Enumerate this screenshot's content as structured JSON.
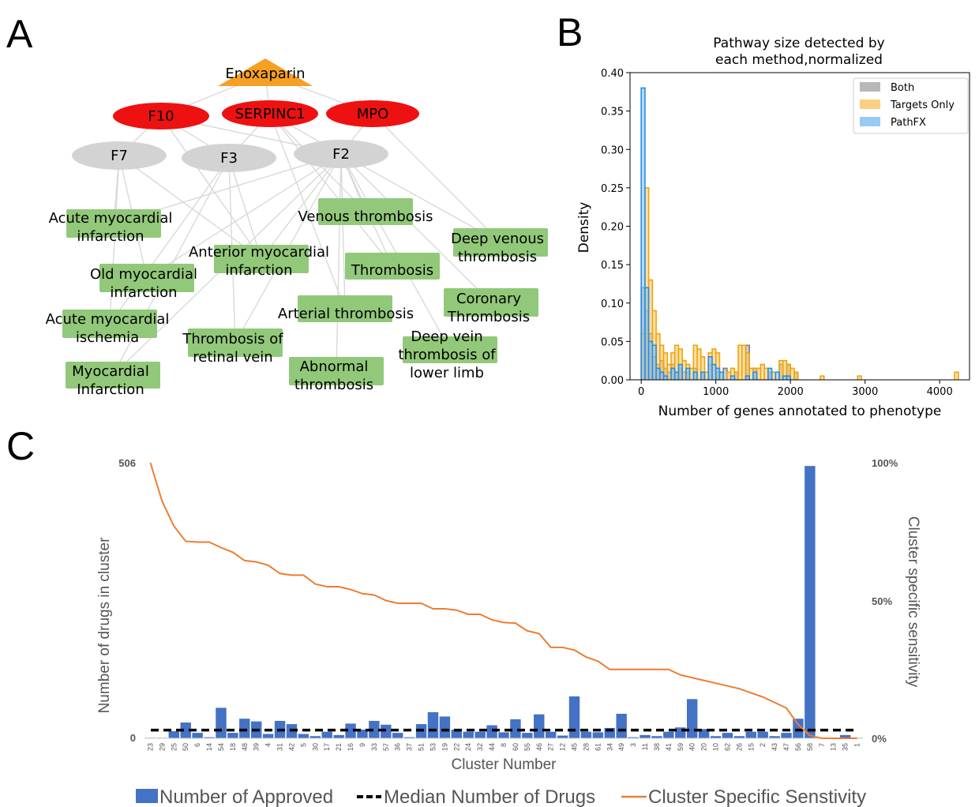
{
  "panels": {
    "a": "A",
    "b": "B",
    "c": "C"
  },
  "network": {
    "edge_color": "#d9d9d9",
    "drug": {
      "label": "Enoxaparin",
      "color": "#f6a023"
    },
    "targets": [
      {
        "label": "F10",
        "color": "#ee1111"
      },
      {
        "label": "SERPINC1",
        "color": "#ee1111"
      },
      {
        "label": "MPO",
        "color": "#ee1111"
      }
    ],
    "intermediates": [
      {
        "label": "F7",
        "color": "#d3d3d3"
      },
      {
        "label": "F3",
        "color": "#d3d3d3"
      },
      {
        "label": "F2",
        "color": "#d3d3d3"
      }
    ],
    "phenotype_color": "#92c87a",
    "phenotypes": [
      {
        "lines": [
          "Acute myocardial",
          "infarction"
        ]
      },
      {
        "lines": [
          "Venous thrombosis"
        ]
      },
      {
        "lines": [
          "Deep venous",
          "thrombosis"
        ]
      },
      {
        "lines": [
          "Anterior myocardial",
          "infarction"
        ]
      },
      {
        "lines": [
          "Old myocardial",
          "infarction"
        ]
      },
      {
        "lines": [
          "Thrombosis"
        ]
      },
      {
        "lines": [
          "Coronary",
          "Thrombosis"
        ]
      },
      {
        "lines": [
          "Arterial thrombosis"
        ]
      },
      {
        "lines": [
          "Acute myocardial",
          "ischemia"
        ]
      },
      {
        "lines": [
          "Thrombosis of",
          "retinal vein"
        ]
      },
      {
        "lines": [
          "Deep vein",
          "thrombosis of",
          "lower limb"
        ]
      },
      {
        "lines": [
          "Abnormal",
          "thrombosis"
        ]
      },
      {
        "lines": [
          "Myocardial",
          "Infarction"
        ]
      }
    ]
  },
  "chart_data": [
    {
      "type": "histogram",
      "title_lines": [
        "Pathway size detected by",
        "each method,normalized"
      ],
      "xlabel": "Number of genes annotated to phenotype",
      "ylabel": "Density",
      "xlim": [
        -150,
        4400
      ],
      "ylim": [
        0,
        0.4
      ],
      "xticks": [
        0,
        1000,
        2000,
        3000,
        4000
      ],
      "yticks": [
        0.0,
        0.05,
        0.1,
        0.15,
        0.2,
        0.25,
        0.3,
        0.35,
        0.4
      ],
      "ytick_labels": [
        "0.00",
        "0.05",
        "0.10",
        "0.15",
        "0.20",
        "0.25",
        "0.30",
        "0.35",
        "0.40"
      ],
      "bin_width": 50,
      "legend_position": "upper right",
      "series": [
        {
          "name": "Both",
          "color": "#a6a6a6",
          "bins": [
            [
              0,
              0.12
            ],
            [
              50,
              0.09
            ],
            [
              100,
              0.06
            ],
            [
              150,
              0.03
            ],
            [
              200,
              0.02
            ],
            [
              250,
              0.025
            ],
            [
              300,
              0.015
            ],
            [
              350,
              0.01
            ],
            [
              400,
              0.02
            ],
            [
              450,
              0.01
            ],
            [
              500,
              0.015
            ],
            [
              550,
              0.01
            ],
            [
              600,
              0.01
            ],
            [
              700,
              0.015
            ],
            [
              800,
              0.01
            ],
            [
              900,
              0.02
            ],
            [
              1000,
              0.01
            ],
            [
              1100,
              0.015
            ],
            [
              1250,
              0.01
            ],
            [
              1400,
              0.045
            ],
            [
              1500,
              0.015
            ],
            [
              1700,
              0.01
            ],
            [
              1850,
              0.02
            ],
            [
              1950,
              0.02
            ],
            [
              2050,
              0.01
            ]
          ]
        },
        {
          "name": "Targets Only",
          "color": "#f7c661",
          "bins": [
            [
              0,
              0.06
            ],
            [
              50,
              0.25
            ],
            [
              100,
              0.13
            ],
            [
              150,
              0.09
            ],
            [
              200,
              0.06
            ],
            [
              250,
              0.045
            ],
            [
              300,
              0.035
            ],
            [
              350,
              0.02
            ],
            [
              400,
              0.035
            ],
            [
              450,
              0.045
            ],
            [
              500,
              0.04
            ],
            [
              550,
              0.025
            ],
            [
              600,
              0.02
            ],
            [
              650,
              0.015
            ],
            [
              700,
              0.045
            ],
            [
              750,
              0.04
            ],
            [
              800,
              0.03
            ],
            [
              850,
              0.01
            ],
            [
              900,
              0.035
            ],
            [
              950,
              0.04
            ],
            [
              1000,
              0.035
            ],
            [
              1050,
              0.01
            ],
            [
              1150,
              0.01
            ],
            [
              1200,
              0.015
            ],
            [
              1250,
              0.01
            ],
            [
              1300,
              0.045
            ],
            [
              1350,
              0.045
            ],
            [
              1400,
              0.035
            ],
            [
              1450,
              0.015
            ],
            [
              1500,
              0.015
            ],
            [
              1550,
              0.015
            ],
            [
              1600,
              0.02
            ],
            [
              1650,
              0.015
            ],
            [
              1700,
              0.01
            ],
            [
              1750,
              0.01
            ],
            [
              1850,
              0.025
            ],
            [
              1900,
              0.025
            ],
            [
              1950,
              0.02
            ],
            [
              2000,
              0.015
            ],
            [
              2050,
              0.01
            ],
            [
              2400,
              0.005
            ],
            [
              2900,
              0.005
            ],
            [
              4200,
              0.01
            ]
          ]
        },
        {
          "name": "PathFX",
          "color": "#7fbdf2",
          "bins": [
            [
              0,
              0.38
            ],
            [
              50,
              0.12
            ],
            [
              100,
              0.05
            ],
            [
              150,
              0.045
            ],
            [
              200,
              0.015
            ],
            [
              250,
              0.01
            ],
            [
              300,
              0.005
            ],
            [
              400,
              0.015
            ],
            [
              450,
              0.01
            ],
            [
              500,
              0.02
            ],
            [
              600,
              0.015
            ],
            [
              700,
              0.01
            ],
            [
              800,
              0.01
            ],
            [
              900,
              0.03
            ],
            [
              950,
              0.02
            ],
            [
              1000,
              0.015
            ],
            [
              1050,
              0.01
            ],
            [
              1200,
              0.005
            ],
            [
              1400,
              0.005
            ],
            [
              1500,
              0.01
            ],
            [
              1700,
              0.015
            ],
            [
              1800,
              0.01
            ],
            [
              1900,
              0.005
            ],
            [
              1950,
              0.005
            ]
          ]
        }
      ]
    },
    {
      "type": "bar+line",
      "xlabel": "Cluster Number",
      "ylabel_left": "Number of drugs in cluster",
      "ylabel_right": "Cluster specific sensitivity",
      "y_left_range": [
        0,
        506
      ],
      "y_left_ticks": [
        "0",
        "506"
      ],
      "y_right_ticks": [
        "0%",
        "50%",
        "100%"
      ],
      "median_drugs": 15,
      "bar_color": "#4472c4",
      "line_color": "#ed7d31",
      "median_color": "#000000",
      "legend": [
        "Number of Approved",
        "Median Number of Drugs",
        "Cluster Specific Senstivity"
      ],
      "categories": [
        "23",
        "29",
        "25",
        "50",
        "6",
        "14",
        "54",
        "18",
        "48",
        "39",
        "4",
        "31",
        "42",
        "5",
        "30",
        "17",
        "21",
        "16",
        "9",
        "33",
        "57",
        "36",
        "37",
        "51",
        "53",
        "19",
        "22",
        "24",
        "32",
        "44",
        "8",
        "60",
        "55",
        "46",
        "27",
        "12",
        "45",
        "28",
        "61",
        "34",
        "49",
        "3",
        "11",
        "38",
        "41",
        "59",
        "40",
        "20",
        "10",
        "62",
        "26",
        "15",
        "2",
        "43",
        "47",
        "56",
        "58",
        "7",
        "13",
        "35",
        "1"
      ],
      "bars": [
        1,
        1,
        13,
        29,
        10,
        2,
        56,
        10,
        36,
        31,
        8,
        32,
        26,
        8,
        4,
        12,
        6,
        27,
        16,
        32,
        25,
        10,
        2,
        26,
        48,
        40,
        16,
        12,
        12,
        24,
        11,
        35,
        10,
        44,
        12,
        5,
        77,
        12,
        11,
        19,
        45,
        2,
        6,
        4,
        12,
        20,
        72,
        17,
        4,
        10,
        4,
        12,
        12,
        4,
        10,
        36,
        500,
        1,
        1,
        6,
        1
      ],
      "sensitivity": [
        1.0,
        0.86,
        0.77,
        0.715,
        0.712,
        0.712,
        0.692,
        0.675,
        0.645,
        0.64,
        0.628,
        0.598,
        0.592,
        0.592,
        0.56,
        0.55,
        0.55,
        0.54,
        0.525,
        0.52,
        0.5,
        0.49,
        0.49,
        0.49,
        0.47,
        0.47,
        0.465,
        0.45,
        0.45,
        0.43,
        0.42,
        0.418,
        0.39,
        0.38,
        0.33,
        0.33,
        0.32,
        0.295,
        0.28,
        0.25,
        0.25,
        0.25,
        0.25,
        0.25,
        0.25,
        0.23,
        0.22,
        0.21,
        0.2,
        0.19,
        0.18,
        0.165,
        0.15,
        0.13,
        0.11,
        0.05,
        0.01,
        0.0,
        0.0,
        0.0,
        0.0
      ]
    }
  ]
}
